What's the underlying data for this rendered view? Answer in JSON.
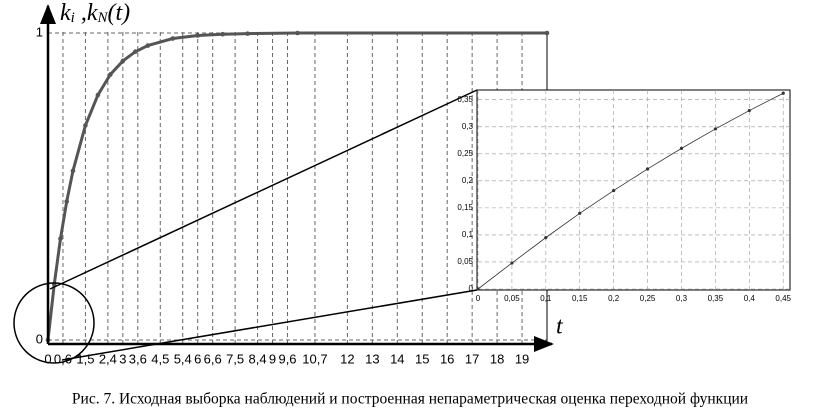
{
  "chart_data": [
    {
      "type": "line",
      "ylabel_parts": [
        "k",
        "i",
        " ,k",
        "N",
        "(t)"
      ],
      "xlabel": "t",
      "x": [
        0,
        0.25,
        0.5,
        0.75,
        1,
        1.5,
        2,
        2.5,
        3,
        3.5,
        4,
        5,
        6,
        7,
        8,
        10,
        20
      ],
      "series": [
        {
          "color": "#555555",
          "values": [
            0,
            0.181,
            0.33,
            0.451,
            0.551,
            0.699,
            0.798,
            0.865,
            0.909,
            0.939,
            0.959,
            0.982,
            0.992,
            0.996,
            0.998,
            1,
            1
          ]
        }
      ],
      "xlim": [
        0,
        20
      ],
      "ylim": [
        0,
        1
      ],
      "xticks": [
        0,
        {
          "value": 0.6,
          "label": "0,6"
        },
        {
          "value": 1.5,
          "label": "1,5"
        },
        {
          "value": 2.4,
          "label": "2,4"
        },
        3,
        {
          "value": 3.6,
          "label": "3,6"
        },
        {
          "value": 4.5,
          "label": "4,5"
        },
        {
          "value": 5.4,
          "label": "5,4"
        },
        6,
        {
          "value": 6.6,
          "label": "6,6"
        },
        {
          "value": 7.5,
          "label": "7,5"
        },
        {
          "value": 8.4,
          "label": "8,4"
        },
        9,
        {
          "value": 9.6,
          "label": "9,6"
        },
        {
          "value": 10.7,
          "label": "10,7"
        },
        12,
        13,
        14,
        15,
        16,
        17,
        18,
        19
      ],
      "yticks": [
        0,
        1
      ],
      "grid": true
    },
    {
      "type": "line",
      "x": [
        0,
        0.05,
        0.1,
        0.15,
        0.2,
        0.25,
        0.3,
        0.35,
        0.4,
        0.45
      ],
      "series": [
        {
          "color": "#333333",
          "values": [
            0,
            0.048,
            0.095,
            0.14,
            0.182,
            0.222,
            0.26,
            0.296,
            0.33,
            0.362
          ]
        }
      ],
      "xlim": [
        0,
        0.46
      ],
      "ylim": [
        0,
        0.368
      ],
      "xticks": [
        0,
        {
          "value": 0.05,
          "label": "0,05"
        },
        {
          "value": 0.1,
          "label": "0,1"
        },
        {
          "value": 0.15,
          "label": "0,15"
        },
        {
          "value": 0.2,
          "label": "0,2"
        },
        {
          "value": 0.25,
          "label": "0,25"
        },
        {
          "value": 0.3,
          "label": "0,3"
        },
        {
          "value": 0.35,
          "label": "0,35"
        },
        {
          "value": 0.4,
          "label": "0,4"
        },
        {
          "value": 0.45,
          "label": "0,45"
        }
      ],
      "yticks": [
        0,
        {
          "value": 0.05,
          "label": "0,05"
        },
        {
          "value": 0.1,
          "label": "0,1"
        },
        {
          "value": 0.15,
          "label": "0,15"
        },
        {
          "value": 0.2,
          "label": "0,2"
        },
        {
          "value": 0.25,
          "label": "0,25"
        },
        {
          "value": 0.3,
          "label": "0,3"
        },
        {
          "value": 0.35,
          "label": "0,35"
        }
      ],
      "grid": true
    }
  ],
  "caption": "Рис. 7. Исходная выборка наблюдений и построенная непараметрическая оценка переходной функции"
}
